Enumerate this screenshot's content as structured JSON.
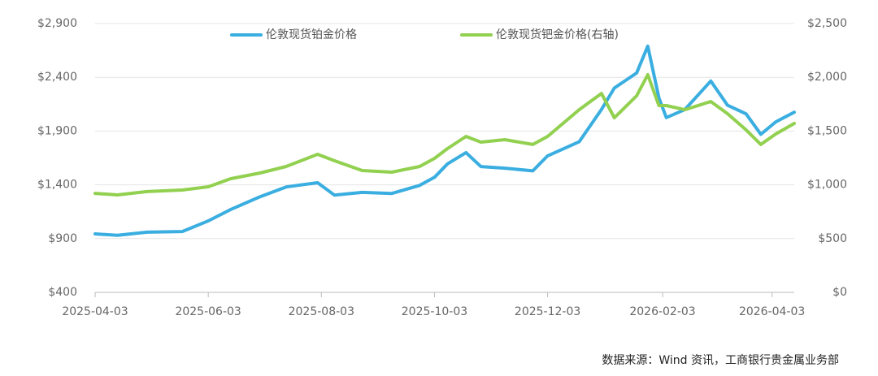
{
  "chart_data": {
    "type": "line",
    "x": [
      "2025-04-03",
      "2025-04-15",
      "2025-05-01",
      "2025-05-20",
      "2025-06-03",
      "2025-06-15",
      "2025-07-01",
      "2025-07-15",
      "2025-08-01",
      "2025-08-10",
      "2025-08-25",
      "2025-09-10",
      "2025-09-25",
      "2025-10-03",
      "2025-10-10",
      "2025-10-20",
      "2025-10-28",
      "2025-11-10",
      "2025-11-25",
      "2025-12-03",
      "2025-12-20",
      "2026-01-01",
      "2026-01-08",
      "2026-01-20",
      "2026-01-26",
      "2026-02-01",
      "2026-02-05",
      "2026-02-15",
      "2026-03-01",
      "2026-03-10",
      "2026-03-20",
      "2026-03-28",
      "2026-04-05",
      "2026-04-15"
    ],
    "xlim": [
      "2025-04-03",
      "2026-04-15"
    ],
    "xticks": [
      "2025-04-03",
      "2025-06-03",
      "2025-08-03",
      "2025-10-03",
      "2025-12-03",
      "2026-02-03",
      "2026-04-03"
    ],
    "series": [
      {
        "name": "伦敦现货铂金价格",
        "color": "#3aaee0",
        "values": [
          944,
          930,
          960,
          966,
          1065,
          1170,
          1290,
          1380,
          1420,
          1305,
          1330,
          1320,
          1395,
          1470,
          1595,
          1700,
          1570,
          1555,
          1530,
          1670,
          1800,
          2100,
          2300,
          2440,
          2690,
          2210,
          2025,
          2100,
          2365,
          2140,
          2060,
          1870,
          1985,
          2075
        ]
      },
      {
        "name": "伦敦现货钯金价格(右轴)",
        "color": "#92d050",
        "axis": "y2",
        "values": [
          921,
          906,
          937,
          952,
          982,
          1057,
          1110,
          1171,
          1284,
          1224,
          1133,
          1118,
          1171,
          1246,
          1337,
          1450,
          1397,
          1420,
          1375,
          1450,
          1699,
          1850,
          1624,
          1828,
          2024,
          1737,
          1737,
          1699,
          1775,
          1662,
          1511,
          1375,
          1473,
          1571
        ]
      }
    ],
    "ylim": [
      400,
      2900
    ],
    "yticks": [
      {
        "value": 400,
        "label": "$400"
      },
      {
        "value": 900,
        "label": "$900"
      },
      {
        "value": 1400,
        "label": "$1,400"
      },
      {
        "value": 1900,
        "label": "$1,900"
      },
      {
        "value": 2400,
        "label": "$2,400"
      },
      {
        "value": 2900,
        "label": "$2,900"
      }
    ],
    "y2lim": [
      0,
      2500
    ],
    "y2ticks": [
      {
        "value": 0,
        "label": "$0"
      },
      {
        "value": 500,
        "label": "$500"
      },
      {
        "value": 1000,
        "label": "$1,000"
      },
      {
        "value": 1500,
        "label": "$1,500"
      },
      {
        "value": 2000,
        "label": "$2,000"
      },
      {
        "value": 2500,
        "label": "$2,500"
      }
    ],
    "grid": true,
    "legend": "top",
    "source": "数据来源：Wind 资讯，工商银行贵金属业务部"
  }
}
